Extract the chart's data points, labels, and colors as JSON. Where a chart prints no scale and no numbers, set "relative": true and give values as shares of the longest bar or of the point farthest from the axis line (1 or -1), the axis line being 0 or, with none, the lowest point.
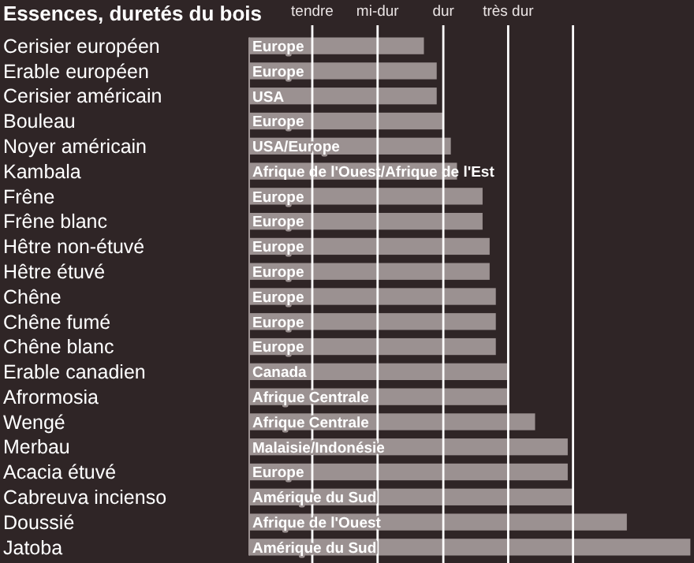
{
  "chart_data": {
    "type": "bar",
    "orientation": "horizontal",
    "relative": true,
    "title": "Essences, duretés du bois",
    "categories": [
      "Cerisier européen",
      "Erable européen",
      "Cerisier américain",
      "Bouleau",
      "Noyer américain",
      "Kambala",
      "Frêne",
      "Frêne blanc",
      "Hêtre non-étuvé",
      "Hêtre étuvé",
      "Chêne",
      "Chêne fumé",
      "Chêne blanc",
      "Erable canadien",
      "Afrormosia",
      "Wengé",
      "Merbau",
      "Acacia étuvé",
      "Cabreuva incienso",
      "Doussié",
      "Jatoba"
    ],
    "values": [
      0.396,
      0.425,
      0.425,
      0.44,
      0.457,
      0.471,
      0.529,
      0.529,
      0.545,
      0.545,
      0.559,
      0.559,
      0.559,
      0.585,
      0.585,
      0.648,
      0.722,
      0.722,
      0.734,
      0.856,
      1
    ],
    "color": "#9b9191",
    "ref_lines": [
      {
        "axis": "x",
        "value": 0.143,
        "label": "tendre",
        "color": "#ffffff"
      },
      {
        "axis": "x",
        "value": 0.291,
        "label": "mi-dur",
        "color": "#ffffff"
      },
      {
        "axis": "x",
        "value": 0.44,
        "label": "dur",
        "color": "#ffffff"
      },
      {
        "axis": "x",
        "value": 0.587,
        "label": "très dur",
        "color": "#ffffff"
      },
      {
        "axis": "x",
        "value": 0.734,
        "label": null,
        "color": "#ffffff"
      }
    ],
    "annotations": [
      {
        "text": "Europe",
        "y": "Cerisier européen"
      },
      {
        "text": "Europe",
        "y": "Erable européen"
      },
      {
        "text": "USA",
        "y": "Cerisier américain"
      },
      {
        "text": "Europe",
        "y": "Bouleau"
      },
      {
        "text": "USA/Europe",
        "y": "Noyer américain"
      },
      {
        "text": "Afrique de l'Ouest/Afrique de l'Est",
        "y": "Kambala"
      },
      {
        "text": "Europe",
        "y": "Frêne"
      },
      {
        "text": "Europe",
        "y": "Frêne blanc"
      },
      {
        "text": "Europe",
        "y": "Hêtre non-étuvé"
      },
      {
        "text": "Europe",
        "y": "Hêtre étuvé"
      },
      {
        "text": "Europe",
        "y": "Chêne"
      },
      {
        "text": "Europe",
        "y": "Chêne fumé"
      },
      {
        "text": "Europe",
        "y": "Chêne blanc"
      },
      {
        "text": "Canada",
        "y": "Erable canadien"
      },
      {
        "text": "Afrique Centrale",
        "y": "Afrormosia"
      },
      {
        "text": "Afrique Centrale",
        "y": "Wengé"
      },
      {
        "text": "Malaisie/Indonésie",
        "y": "Merbau"
      },
      {
        "text": "Europe",
        "y": "Acacia étuvé"
      },
      {
        "text": "Amérique du Sud",
        "y": "Cabreuva incienso"
      },
      {
        "text": "Afrique de l'Ouest",
        "y": "Doussié"
      },
      {
        "text": "Amérique du Sud",
        "y": "Jatoba"
      }
    ]
  }
}
